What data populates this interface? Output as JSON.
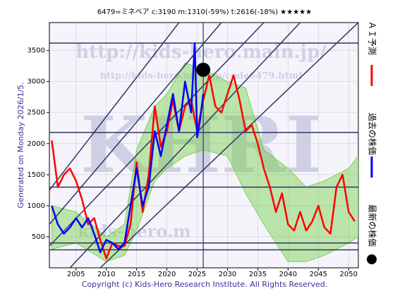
{
  "chart_data": {
    "type": "line",
    "title": "6479=ミネベア    c:3190  m:1310(-59%)  t:2616(-18%)  ★★★★★",
    "y_label": "Generated on Monday 2026/1/5.",
    "footer": "Copyright (c) Kids-Hero Research Institute. All Rights Reserved.",
    "watermarks": [
      "http://kids-hero.main.jp/",
      "http://kids-hero.main.jp/code6479.html",
      "KHRI",
      "kids-hero.m"
    ],
    "xlim": [
      2000.6,
      2051.6
    ],
    "ylim": [
      0,
      3950
    ],
    "xticks": [
      2005,
      2010,
      2015,
      2020,
      2025,
      2030,
      2035,
      2040,
      2045,
      2050
    ],
    "yticks": [
      500,
      1000,
      1500,
      2000,
      2500,
      3000,
      3500
    ],
    "grid": true,
    "series": [
      {
        "name": "ＡＩ予測",
        "color": "#ff0000",
        "x": [
          2001,
          2002,
          2003,
          2004,
          2005,
          2006,
          2007,
          2008,
          2009,
          2010,
          2011,
          2012,
          2013,
          2014,
          2015,
          2016,
          2017,
          2018,
          2019,
          2020,
          2021,
          2022,
          2023,
          2024,
          2025,
          2026,
          2027,
          2028,
          2029,
          2030,
          2031,
          2032,
          2033,
          2034,
          2035,
          2036,
          2037,
          2038,
          2039,
          2040,
          2041,
          2042,
          2043,
          2044,
          2045,
          2046,
          2047,
          2048,
          2049,
          2050,
          2051
        ],
        "values": [
          2050,
          1300,
          1500,
          1600,
          1400,
          1100,
          700,
          800,
          450,
          150,
          400,
          350,
          350,
          700,
          1700,
          900,
          1500,
          2600,
          1950,
          2200,
          2700,
          2200,
          2600,
          2700,
          2200,
          2700,
          3100,
          2600,
          2500,
          2800,
          3100,
          2700,
          2200,
          2300,
          2000,
          1600,
          1300,
          900,
          1200,
          700,
          600,
          900,
          600,
          750,
          1000,
          650,
          550,
          1300,
          1500,
          900,
          750
        ]
      },
      {
        "name": "過去の株価",
        "color": "#0000ff",
        "x": [
          2001,
          2002,
          2003,
          2004,
          2005,
          2006,
          2007,
          2008,
          2009,
          2010,
          2011,
          2012,
          2013,
          2014,
          2015,
          2016,
          2017,
          2018,
          2019,
          2020,
          2021,
          2022,
          2023,
          2024,
          2024.6,
          2025,
          2025.5,
          2026
        ],
        "values": [
          1000,
          700,
          550,
          650,
          800,
          650,
          800,
          550,
          250,
          450,
          400,
          300,
          400,
          1000,
          1600,
          1000,
          1300,
          2200,
          1800,
          2300,
          2800,
          2200,
          3000,
          2500,
          3620,
          2100,
          2400,
          2800
        ]
      }
    ],
    "latest": {
      "name": "最新の株価",
      "x": 2026,
      "value": 3190,
      "color": "#000000"
    },
    "band": {
      "color": "#66cc33",
      "x": [
        2001,
        2005,
        2010,
        2013,
        2015,
        2018,
        2020,
        2023,
        2026,
        2030,
        2033,
        2036,
        2040,
        2043,
        2046,
        2050,
        2051.6
      ],
      "upper": [
        1000,
        900,
        500,
        700,
        1900,
        2600,
        2800,
        3300,
        3200,
        3000,
        2900,
        1900,
        1600,
        1300,
        1400,
        1600,
        1800
      ],
      "lower": [
        300,
        400,
        100,
        200,
        600,
        1400,
        1600,
        1800,
        1900,
        1800,
        1200,
        700,
        100,
        100,
        200,
        400,
        500
      ]
    },
    "hlines": [
      3620,
      2180,
      1300,
      400,
      290
    ],
    "vline": 2026,
    "trendlines": [
      [
        2000.6,
        1250,
        2022,
        3950
      ],
      [
        2000.6,
        700,
        2029,
        3950
      ],
      [
        2000.6,
        350,
        2036,
        3950
      ],
      [
        2004,
        0,
        2042,
        3950
      ],
      [
        2009,
        0,
        2051.6,
        3950
      ]
    ]
  }
}
